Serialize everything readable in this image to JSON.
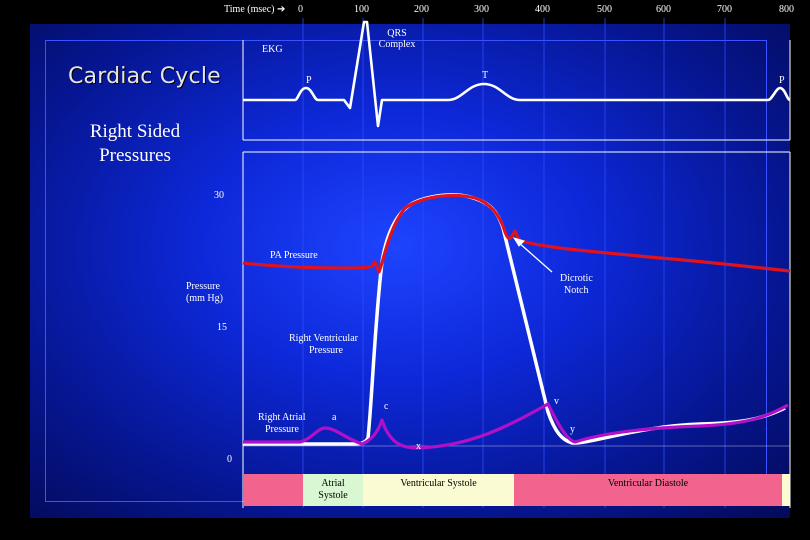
{
  "time_axis": {
    "label": "Time (msec)",
    "arrow": "➔",
    "ticks": [
      "0",
      "100",
      "200",
      "300",
      "400",
      "500",
      "600",
      "700",
      "800"
    ]
  },
  "title": "Cardiac Cycle",
  "subtitle": "Right Sided Pressures",
  "ekg": {
    "label": "EKG",
    "qrs_label": "QRS Complex",
    "p_label": "P",
    "t_label": "T",
    "p2_label": "P"
  },
  "pressure_axis": {
    "label_line1": "Pressure",
    "label_line2": "(mm Hg)",
    "ticks": [
      "30",
      "15",
      "0"
    ]
  },
  "annotations": {
    "pa_pressure": "PA Pressure",
    "dicrotic_notch_1": "Dicrotic",
    "dicrotic_notch_2": "Notch",
    "rv_pressure_1": "Right Ventricular",
    "rv_pressure_2": "Pressure",
    "ra_pressure_1": "Right Atrial",
    "ra_pressure_2": "Pressure",
    "a_wave": "a",
    "c_wave": "c",
    "x_descent": "x",
    "v_wave": "v",
    "y_descent": "y"
  },
  "phases": {
    "atrial_systole_1": "Atrial",
    "atrial_systole_2": "Systole",
    "ventricular_systole": "Ventricular Systole",
    "ventricular_diastole": "Ventricular Diastole"
  },
  "colors": {
    "pa_curve": "#e0121e",
    "rv_curve": "#ffffff",
    "ra_curve": "#b011c8",
    "ekg_curve": "#ffffff",
    "band_pink": "#f2638e",
    "band_green": "#d9f7d1",
    "band_yellow": "#fbfbd3"
  }
}
